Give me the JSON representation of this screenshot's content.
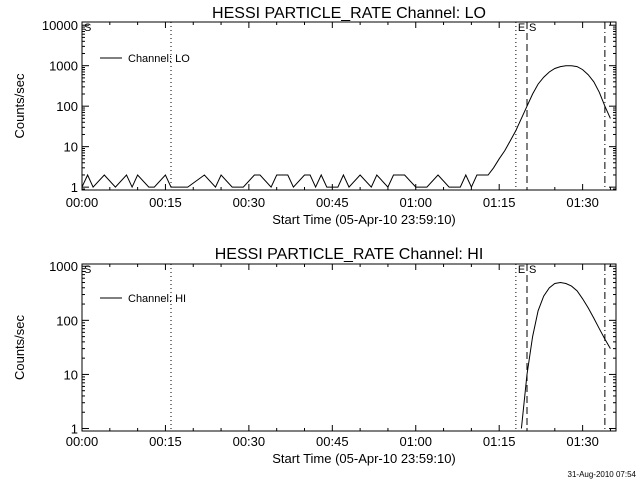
{
  "footer": {
    "timestamp": "31-Aug-2010 07:54"
  },
  "chart_data": [
    {
      "type": "line",
      "title": "HESSI PARTICLE_RATE Channel: LO",
      "xlabel": "Start Time (05-Apr-10 23:59:10)",
      "ylabel": "Counts/sec",
      "yscale": "log",
      "xlim": [
        "00:00",
        "01:36"
      ],
      "ylim": [
        0.85,
        12000
      ],
      "xtick_labels": [
        "00:00",
        "00:15",
        "00:30",
        "00:45",
        "01:00",
        "01:15",
        "01:30"
      ],
      "ytick_labels": [
        "1",
        "10",
        "100",
        "1000",
        "10000"
      ],
      "legend": {
        "entries": [
          "Channel: LO"
        ],
        "position": "top-left"
      },
      "markers": [
        {
          "label": "S",
          "x": "00:00",
          "style": "none"
        },
        {
          "label": "",
          "x": "00:16",
          "style": "dotted"
        },
        {
          "label": "E",
          "x": "01:18",
          "style": "dotted"
        },
        {
          "label": "S",
          "x": "01:20",
          "style": "dashed"
        },
        {
          "label": "",
          "x": "01:34",
          "style": "dash-dot"
        }
      ],
      "series": [
        {
          "name": "Channel: LO",
          "x": [
            "00:00",
            "00:01",
            "00:02",
            "00:04",
            "00:06",
            "00:08",
            "00:09",
            "00:10",
            "00:12",
            "00:13",
            "00:15",
            "00:16",
            "00:17",
            "00:19",
            "00:22",
            "00:24",
            "00:25",
            "00:27",
            "00:29",
            "00:31",
            "00:32",
            "00:34",
            "00:35",
            "00:37",
            "00:38",
            "00:40",
            "00:41",
            "00:42",
            "00:43",
            "00:44",
            "00:46",
            "00:47",
            "00:48",
            "00:50",
            "00:52",
            "00:53",
            "00:55",
            "00:56",
            "00:58",
            "01:00",
            "01:02",
            "01:04",
            "01:06",
            "01:08",
            "01:09",
            "01:10",
            "01:11",
            "01:12",
            "01:13",
            "01:14",
            "01:15",
            "01:16",
            "01:17",
            "01:18",
            "01:19",
            "01:20",
            "01:21",
            "01:22",
            "01:23",
            "01:24",
            "01:25",
            "01:26",
            "01:27",
            "01:28",
            "01:29",
            "01:30",
            "01:31",
            "01:32",
            "01:33",
            "01:34",
            "01:35"
          ],
          "y": [
            1,
            2,
            1,
            2,
            1,
            2,
            1,
            2,
            1,
            1,
            2,
            1,
            1,
            1,
            2,
            1,
            2,
            1,
            1,
            2,
            2,
            1,
            2,
            2,
            1,
            2,
            2,
            1,
            2,
            1,
            1,
            2,
            1,
            2,
            1,
            2,
            1,
            2,
            2,
            1,
            1,
            2,
            1,
            1,
            2,
            1,
            2,
            2,
            2,
            3,
            5,
            8,
            14,
            25,
            50,
            100,
            200,
            350,
            520,
            700,
            850,
            950,
            1000,
            1000,
            950,
            800,
            600,
            400,
            220,
            100,
            50
          ]
        }
      ]
    },
    {
      "type": "line",
      "title": "HESSI PARTICLE_RATE Channel: HI",
      "xlabel": "Start Time (05-Apr-10 23:59:10)",
      "ylabel": "Counts/sec",
      "yscale": "log",
      "xlim": [
        "00:00",
        "01:36"
      ],
      "ylim": [
        0.9,
        1100
      ],
      "xtick_labels": [
        "00:00",
        "00:15",
        "00:30",
        "00:45",
        "01:00",
        "01:15",
        "01:30"
      ],
      "ytick_labels": [
        "1",
        "10",
        "100",
        "1000"
      ],
      "legend": {
        "entries": [
          "Channel: HI"
        ],
        "position": "top-left"
      },
      "markers": [
        {
          "label": "S",
          "x": "00:00",
          "style": "none"
        },
        {
          "label": "",
          "x": "00:16",
          "style": "dotted"
        },
        {
          "label": "E",
          "x": "01:18",
          "style": "dotted"
        },
        {
          "label": "S",
          "x": "01:20",
          "style": "dashed"
        },
        {
          "label": "",
          "x": "01:34",
          "style": "dash-dot"
        }
      ],
      "series": [
        {
          "name": "Channel: HI",
          "x": [
            "01:19",
            "01:20",
            "01:21",
            "01:22",
            "01:23",
            "01:24",
            "01:25",
            "01:26",
            "01:27",
            "01:28",
            "01:29",
            "01:30",
            "01:31",
            "01:32",
            "01:33",
            "01:34",
            "01:35"
          ],
          "y": [
            1,
            10,
            50,
            150,
            280,
            400,
            480,
            500,
            480,
            430,
            350,
            250,
            170,
            110,
            70,
            45,
            30
          ]
        }
      ]
    }
  ]
}
